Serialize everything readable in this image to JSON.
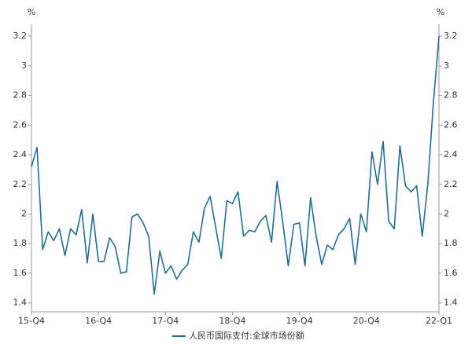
{
  "chart_data": {
    "type": "line",
    "ylabel": "%",
    "y2label": "%",
    "categories": [
      "15-Q4",
      null,
      null,
      null,
      null,
      null,
      null,
      null,
      null,
      null,
      null,
      null,
      "16-Q4",
      null,
      null,
      null,
      null,
      null,
      null,
      null,
      null,
      null,
      null,
      null,
      "17-Q4",
      null,
      null,
      null,
      null,
      null,
      null,
      null,
      null,
      null,
      null,
      null,
      "18-Q4",
      null,
      null,
      null,
      null,
      null,
      null,
      null,
      null,
      null,
      null,
      null,
      "19-Q4",
      null,
      null,
      null,
      null,
      null,
      null,
      null,
      null,
      null,
      null,
      null,
      "20-Q4",
      null,
      null,
      null,
      null,
      null,
      null,
      null,
      null,
      null,
      null,
      null,
      null,
      "22-Q1"
    ],
    "series": [
      {
        "name": "人民币国际支付:全球市场份额",
        "color": "#1f6e96",
        "values": [
          2.32,
          2.45,
          1.76,
          1.88,
          1.82,
          1.9,
          1.72,
          1.9,
          1.86,
          2.03,
          1.67,
          2.0,
          1.68,
          1.68,
          1.84,
          1.78,
          1.6,
          1.61,
          1.98,
          2.0,
          1.94,
          1.85,
          1.46,
          1.75,
          1.6,
          1.65,
          1.56,
          1.62,
          1.66,
          1.88,
          1.81,
          2.04,
          2.12,
          1.91,
          1.7,
          2.09,
          2.07,
          2.15,
          1.85,
          1.89,
          1.88,
          1.95,
          1.99,
          1.81,
          2.22,
          1.95,
          1.65,
          1.93,
          1.94,
          1.65,
          2.11,
          1.85,
          1.66,
          1.79,
          1.76,
          1.86,
          1.9,
          1.97,
          1.66,
          2.0,
          1.88,
          2.42,
          2.2,
          2.49,
          1.95,
          1.9,
          2.46,
          2.19,
          2.15,
          2.19,
          1.85,
          2.2,
          2.75,
          3.2
        ]
      }
    ],
    "ylim": [
      1.34,
      3.28
    ],
    "yticks": [
      1.4,
      1.6,
      1.8,
      2,
      2.2,
      2.4,
      2.6,
      2.8,
      3,
      3.2
    ],
    "y2lim": [
      1.34,
      3.28
    ],
    "y2ticks": [
      1.4,
      1.6,
      1.8,
      2,
      2.2,
      2.4,
      2.6,
      2.8,
      3,
      3.2
    ],
    "grid": false
  }
}
